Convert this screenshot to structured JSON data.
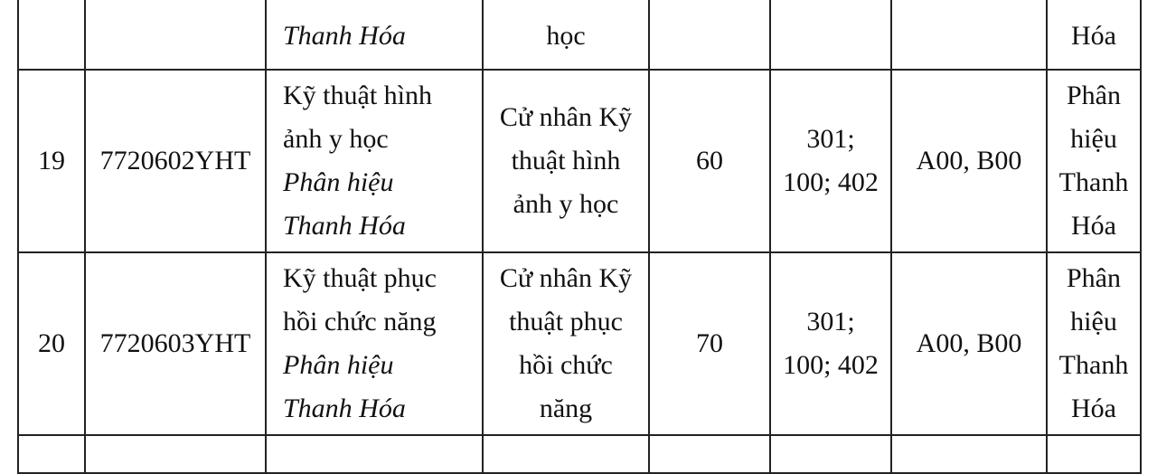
{
  "rows": [
    {
      "stt": "",
      "code": "",
      "name_lines": [],
      "name_italic": [
        "Thanh Hóa"
      ],
      "degree_lines": [
        "học"
      ],
      "quota": "",
      "method": "",
      "combos": "",
      "location_lines": [
        "Hóa"
      ]
    },
    {
      "stt": "19",
      "code": "7720602YHT",
      "name_lines": [
        "Kỹ thuật hình",
        "ảnh y học"
      ],
      "name_italic": [
        "Phân hiệu",
        "Thanh Hóa"
      ],
      "degree_lines": [
        "Cử nhân Kỹ",
        "thuật hình",
        "ảnh y học"
      ],
      "quota": "60",
      "method": [
        "301;",
        "100; 402"
      ],
      "combos": "A00, B00",
      "location_lines": [
        "Phân",
        "hiệu",
        "Thanh",
        "Hóa"
      ]
    },
    {
      "stt": "20",
      "code": "7720603YHT",
      "name_lines": [
        "Kỹ thuật phục",
        "hồi chức năng"
      ],
      "name_italic": [
        "Phân hiệu",
        "Thanh Hóa"
      ],
      "degree_lines": [
        "Cử nhân Kỹ",
        "thuật phục",
        "hồi chức",
        "năng"
      ],
      "quota": "70",
      "method": [
        "301;",
        "100; 402"
      ],
      "combos": "A00, B00",
      "location_lines": [
        "Phân",
        "hiệu",
        "Thanh",
        "Hóa"
      ]
    }
  ]
}
